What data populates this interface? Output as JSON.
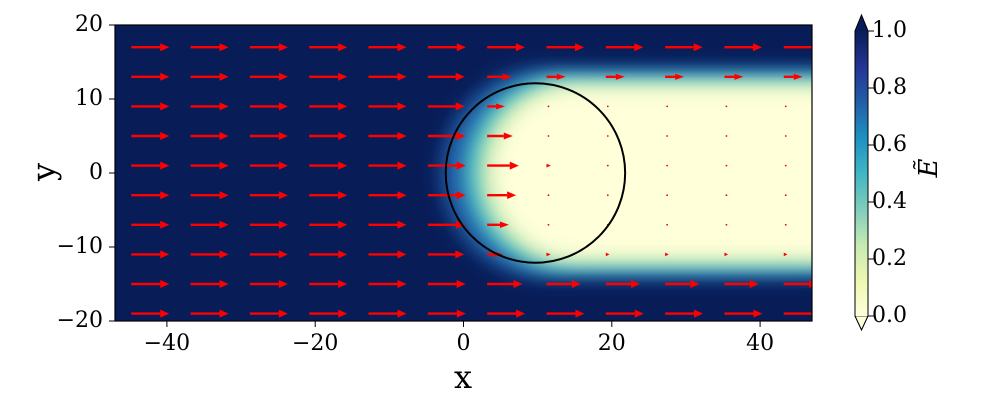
{
  "chart_data": {
    "type": "heatmap",
    "title": "",
    "xlabel": "x",
    "ylabel": "y",
    "xlim": [
      -47,
      47
    ],
    "ylim": [
      -20,
      20
    ],
    "xticks": [
      -40,
      -20,
      0,
      20,
      40
    ],
    "yticks": [
      -20,
      -10,
      0,
      10,
      20
    ],
    "colorbar": {
      "label": "Ẽ",
      "range": [
        0.0,
        1.0
      ],
      "ticks": [
        "0.0",
        "0.2",
        "0.4",
        "0.6",
        "0.8",
        "1.0"
      ],
      "colormap": "YlGnBu",
      "extend": "both"
    },
    "circle": {
      "center": [
        9.7,
        0
      ],
      "radius": 12.1,
      "color": "#000000"
    },
    "field": {
      "description_values": "normalized field magnitude: ~1 far upstream (x < -10), drops to ~0 inside and behind the circular obstacle (|y| < ~13, x > 0)",
      "far_field_value": 1.0,
      "shadow_value": 0.02
    },
    "quiver": {
      "color": "#ff0000",
      "x": [
        -44,
        -36,
        -28,
        -20,
        -12,
        -4,
        4,
        12,
        20,
        28,
        36,
        44
      ],
      "y": [
        17,
        13,
        9,
        5,
        1,
        -3,
        -7,
        -11,
        -15,
        -19
      ],
      "direction": "+x"
    },
    "colors": {
      "max": "#081d58",
      "min": "#ffffd9",
      "arrows": "#ff0000"
    }
  }
}
